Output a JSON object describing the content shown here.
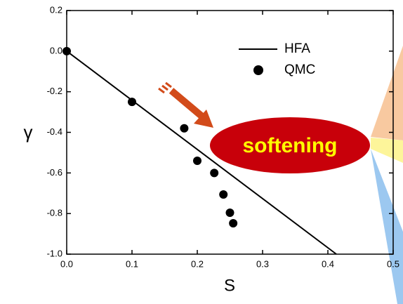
{
  "chart_data": {
    "type": "scatter",
    "x_label": "S",
    "y_label": "γ",
    "xlim": [
      0,
      0.5
    ],
    "ylim": [
      -1.0,
      0.2
    ],
    "xticks": [
      {
        "value": 0,
        "label": "0.0"
      },
      0.1,
      0.2,
      0.3,
      0.4,
      0.5
    ],
    "yticks": [
      {
        "value": -1.0,
        "label": "-1.0"
      },
      -0.8,
      -0.6,
      -0.4,
      -0.2,
      {
        "value": 0,
        "label": "0.0"
      },
      0.2
    ],
    "series": [
      {
        "name": "HFA",
        "type": "line",
        "color": "#000000",
        "x": [
          0,
          0.413
        ],
        "values": [
          0,
          -1.0
        ]
      },
      {
        "name": "QMC",
        "type": "scatter",
        "color": "#000000",
        "x": [
          0,
          0.1,
          0.18,
          0.2,
          0.226,
          0.24,
          0.25,
          0.255
        ],
        "values": [
          0,
          -0.25,
          -0.38,
          -0.54,
          -0.6,
          -0.706,
          -0.796,
          -0.848
        ]
      }
    ],
    "annotation": "softening"
  }
}
